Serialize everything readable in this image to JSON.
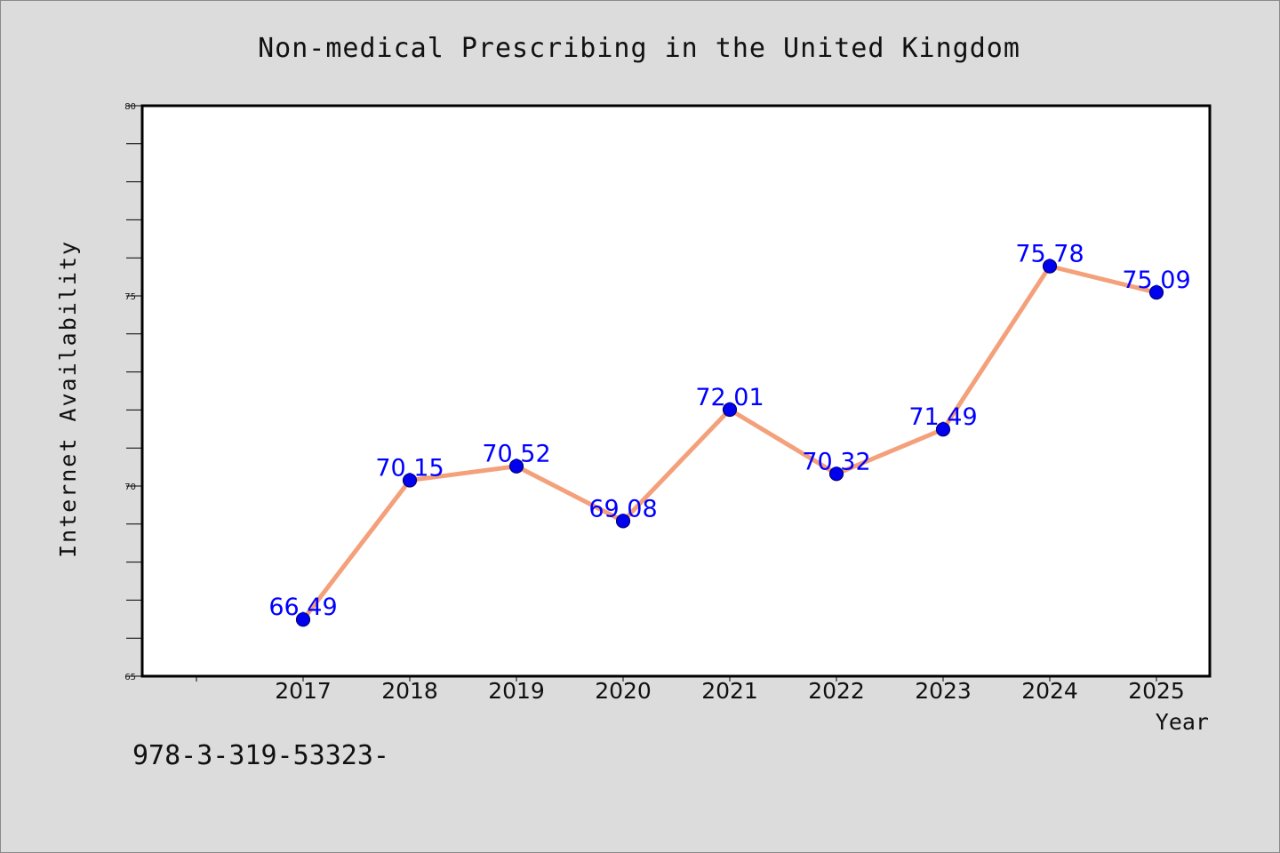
{
  "chart_data": {
    "type": "line",
    "title": "Non-medical Prescribing in the United Kingdom",
    "xlabel": "Year",
    "ylabel": "Internet Availability",
    "x": [
      "2017",
      "2018",
      "2019",
      "2020",
      "2021",
      "2022",
      "2023",
      "2024",
      "2025"
    ],
    "series": [
      {
        "values": [
          66.49,
          70.15,
          70.52,
          69.08,
          72.01,
          70.32,
          71.49,
          75.78,
          75.09
        ]
      }
    ],
    "data_labels": [
      "66.49",
      "70.15",
      "70.52",
      "69.08",
      "72.01",
      "70.32",
      "71.49",
      "75.78",
      "75.09"
    ],
    "ylim": [
      65,
      80
    ],
    "y_ticks": [
      "65",
      "70",
      "75",
      "80"
    ],
    "grid": false,
    "legend": "none",
    "colors": {
      "line": "#f4a07a",
      "marker": "#0000ee",
      "marker_edge": "#00007a",
      "data_label": "#0000ff",
      "plot_background": "#ffffff",
      "figure_background": "#dcdcdc"
    }
  },
  "footnote": "978-3-319-53323-"
}
